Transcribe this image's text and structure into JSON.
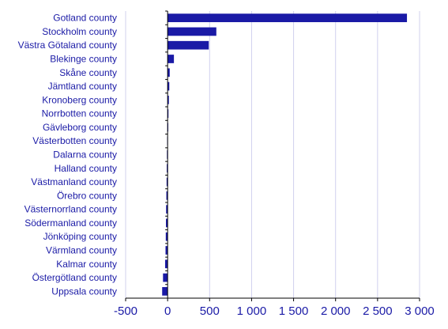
{
  "chart_data": {
    "type": "bar",
    "orientation": "horizontal",
    "title": "",
    "xlabel": "",
    "ylabel": "",
    "categories": [
      "Gotland county",
      "Stockholm county",
      "Västra Götaland county",
      "Blekinge county",
      "Skåne county",
      "Jämtland county",
      "Kronoberg county",
      "Norrbotten county",
      "Gävleborg county",
      "Västerbotten county",
      "Dalarna county",
      "Halland county",
      "Västmanland county",
      "Örebro county",
      "Västernorrland county",
      "Södermanland county",
      "Jönköping county",
      "Värmland county",
      "Kalmar county",
      "Östergötland county",
      "Uppsala county"
    ],
    "values": [
      2850,
      580,
      490,
      75,
      25,
      20,
      15,
      10,
      3,
      -5,
      -8,
      -10,
      -12,
      -15,
      -18,
      -20,
      -22,
      -25,
      -30,
      -55,
      -65
    ],
    "xlim": [
      -500,
      3000
    ],
    "xticks": [
      -500,
      0,
      500,
      1000,
      1500,
      2000,
      2500,
      3000
    ],
    "xtick_labels": [
      "-500",
      "0",
      "500",
      "1 000",
      "1 500",
      "2 000",
      "2 500",
      "3 000"
    ],
    "grid": true,
    "bar_color": "#1a1aa6",
    "grid_color": "#d0d0ee",
    "text_color": "#1a1aa6"
  }
}
